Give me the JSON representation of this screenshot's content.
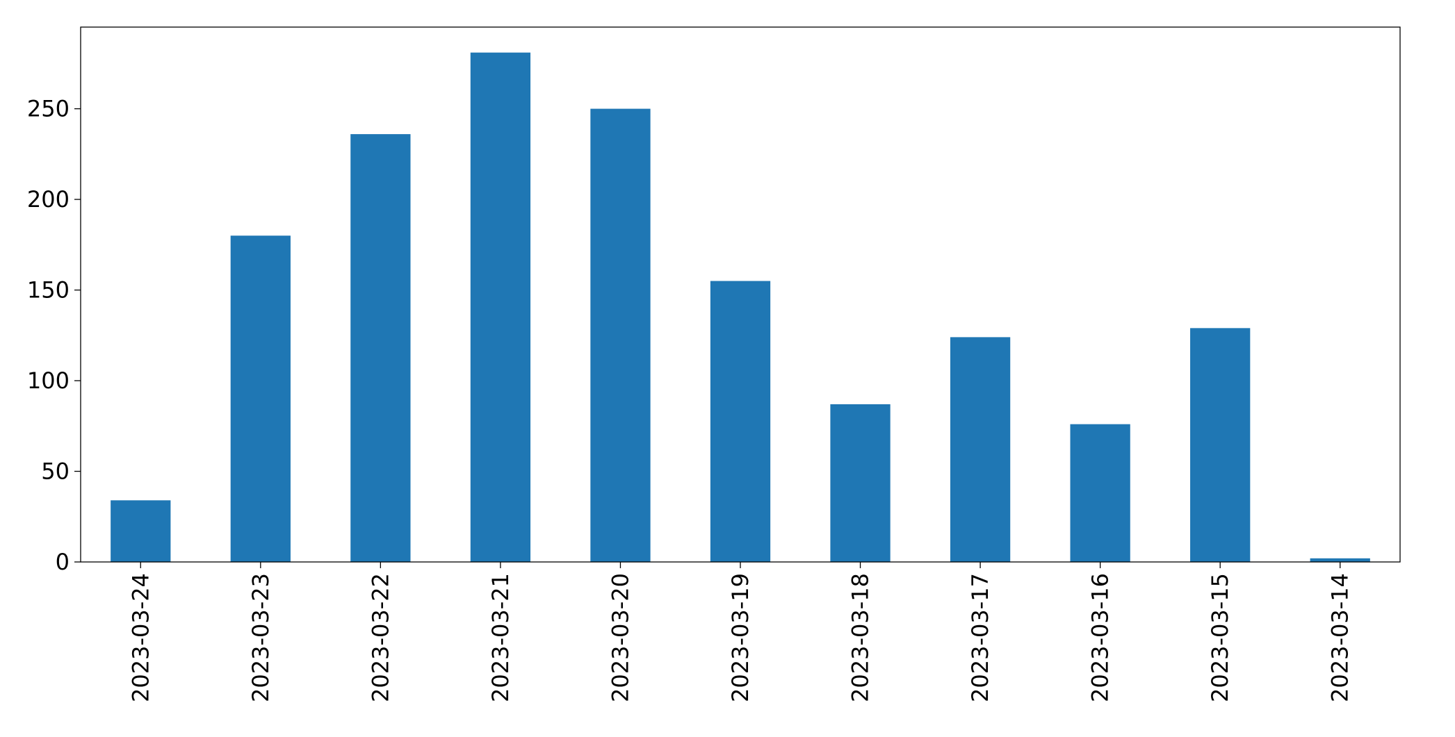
{
  "chart_data": {
    "type": "bar",
    "categories": [
      "2023-03-24",
      "2023-03-23",
      "2023-03-22",
      "2023-03-21",
      "2023-03-20",
      "2023-03-19",
      "2023-03-18",
      "2023-03-17",
      "2023-03-16",
      "2023-03-15",
      "2023-03-14"
    ],
    "values": [
      34,
      180,
      236,
      281,
      250,
      155,
      87,
      124,
      76,
      129,
      2
    ],
    "color": "#1f77b4",
    "ylim": [
      0,
      295.05
    ],
    "yticks": [
      0,
      50,
      100,
      150,
      200,
      250
    ],
    "grid": false
  }
}
